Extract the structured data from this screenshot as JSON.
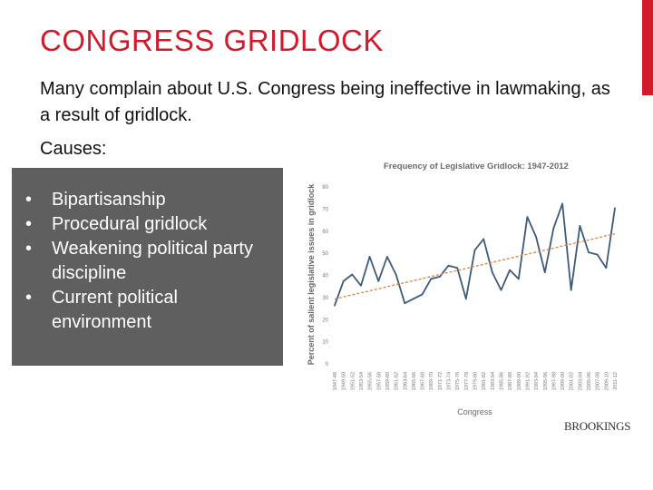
{
  "slide": {
    "title": "CONGRESS GRIDLOCK",
    "intro": "Many complain about U.S. Congress being ineffective in lawmaking, as a result of gridlock.",
    "causes_label": "Causes:",
    "causes": [
      "Bipartisanship",
      "Procedural gridlock",
      "Weakening political party discipline",
      "Current political environment"
    ],
    "brand": "BROOKINGS"
  },
  "colors": {
    "title": "#d11a2a",
    "accent": "#d11a2a",
    "causes_box": "#5f5f5f",
    "line": "#3d5a78",
    "trend": "#d9843c"
  },
  "chart_data": {
    "type": "line",
    "title": "Frequency of Legislative Gridlock: 1947-2012",
    "xlabel": "Congress",
    "ylabel": "Percent of salient legislative issues in gridlock",
    "ylim": [
      0,
      80
    ],
    "yticks": [
      0,
      10,
      20,
      30,
      40,
      50,
      60,
      70,
      80
    ],
    "grid": false,
    "categories": [
      "1947-48",
      "1949-50",
      "1951-52",
      "1953-54",
      "1955-56",
      "1957-58",
      "1959-60",
      "1961-62",
      "1963-64",
      "1965-66",
      "1967-68",
      "1969-70",
      "1971-72",
      "1973-74",
      "1975-76",
      "1977-78",
      "1979-80",
      "1981-82",
      "1983-84",
      "1985-86",
      "1987-88",
      "1989-90",
      "1991-92",
      "1993-94",
      "1995-96",
      "1997-98",
      "1999-00",
      "2001-02",
      "2003-04",
      "2005-06",
      "2007-08",
      "2009-10",
      "2011-12"
    ],
    "series": [
      {
        "values": [
          26,
          37,
          40,
          35,
          48,
          37,
          48,
          40,
          27,
          29,
          31,
          38,
          39,
          44,
          43,
          29,
          51,
          56,
          41,
          33,
          42,
          38,
          66,
          57,
          41,
          61,
          72,
          33,
          62,
          50,
          49,
          43,
          70
        ]
      },
      {
        "style": "dashed-trend",
        "values": [
          28.9,
          29.9,
          30.8,
          31.7,
          32.6,
          33.5,
          34.5,
          35.4,
          36.3,
          37.2,
          38.1,
          39.1,
          40.0,
          40.9,
          41.8,
          42.7,
          43.7,
          44.6,
          45.5,
          46.4,
          47.3,
          48.3,
          49.2,
          50.1,
          51.0,
          51.9,
          52.9,
          53.8,
          54.7,
          55.6,
          56.5,
          57.5,
          58.4
        ]
      }
    ]
  }
}
